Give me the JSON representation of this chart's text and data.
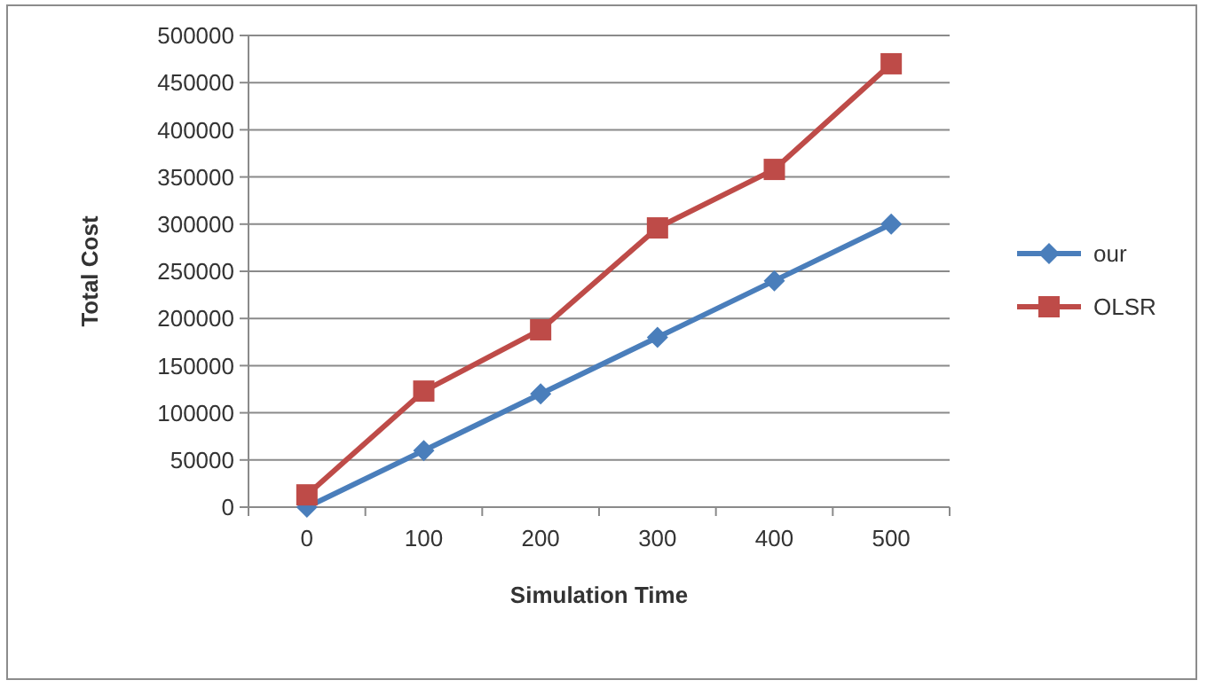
{
  "chart_data": {
    "type": "line",
    "xlabel": "Simulation Time",
    "ylabel": "Total Cost",
    "categories": [
      "0",
      "100",
      "200",
      "300",
      "400",
      "500"
    ],
    "series": [
      {
        "name": "our",
        "color": "#4a7ebb",
        "marker": "diamond",
        "values": [
          0,
          60000,
          120000,
          180000,
          240000,
          300000
        ]
      },
      {
        "name": "OLSR",
        "color": "#be4b48",
        "marker": "square",
        "values": [
          13000,
          123000,
          188000,
          296000,
          358000,
          470000
        ]
      }
    ],
    "ylim": [
      0,
      500000
    ],
    "yticks": [
      0,
      50000,
      100000,
      150000,
      200000,
      250000,
      300000,
      350000,
      400000,
      450000,
      500000
    ],
    "grid": "y",
    "legend": "right"
  }
}
